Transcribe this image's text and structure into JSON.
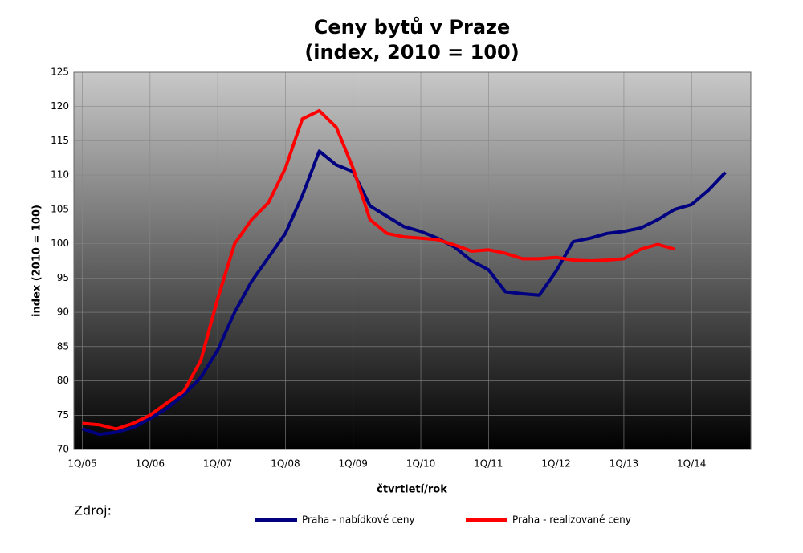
{
  "chart_data": {
    "type": "line",
    "title": "Ceny bytů v Praze",
    "subtitle": "(index, 2010 = 100)",
    "x_label": "čtvrtletí/rok",
    "y_label": "index (2010 = 100)",
    "source": "Zdroj:",
    "categories": [
      "1Q/05",
      null,
      null,
      null,
      "1Q/06",
      null,
      null,
      null,
      "1Q/07",
      null,
      null,
      null,
      "1Q/08",
      null,
      null,
      null,
      "1Q/09",
      null,
      null,
      null,
      "1Q/10",
      null,
      null,
      null,
      "1Q/11",
      null,
      null,
      null,
      "1Q/12",
      null,
      null,
      null,
      "1Q/13",
      null,
      null,
      null,
      "1Q/14",
      null,
      null,
      null
    ],
    "series": [
      {
        "name": "Praha - nabídkové ceny",
        "color": "#000080",
        "values": [
          73,
          72.2,
          72.5,
          73.2,
          74.5,
          76,
          78,
          80.5,
          84.5,
          90,
          94.5,
          98,
          101.5,
          107,
          113.5,
          111.5,
          110.5,
          105.5,
          104,
          102.5,
          101.8,
          100.8,
          99.5,
          97.5,
          96.2,
          93,
          92.7,
          92.5,
          96,
          100.3,
          100.8,
          101.5,
          101.8,
          102.3,
          103.5,
          105,
          105.7,
          107.8,
          110.4,
          null
        ]
      },
      {
        "name": "Praha - realizované ceny",
        "color": "#ff0000",
        "values": [
          73.8,
          73.6,
          73,
          73.8,
          75,
          76.8,
          78.5,
          83,
          92,
          100,
          103.5,
          106,
          111,
          118.2,
          119.4,
          117,
          111,
          103.5,
          101.5,
          101,
          100.8,
          100.6,
          99.8,
          98.9,
          99.1,
          98.6,
          97.8,
          97.8,
          98,
          97.6,
          97.5,
          97.6,
          97.8,
          99.2,
          99.9,
          99.2,
          null,
          null,
          null,
          null
        ]
      }
    ],
    "ylim": [
      70,
      125
    ],
    "yticks": [
      70,
      75,
      80,
      85,
      90,
      95,
      100,
      105,
      110,
      115,
      120,
      125
    ],
    "grid": true,
    "legend": "bottom"
  }
}
